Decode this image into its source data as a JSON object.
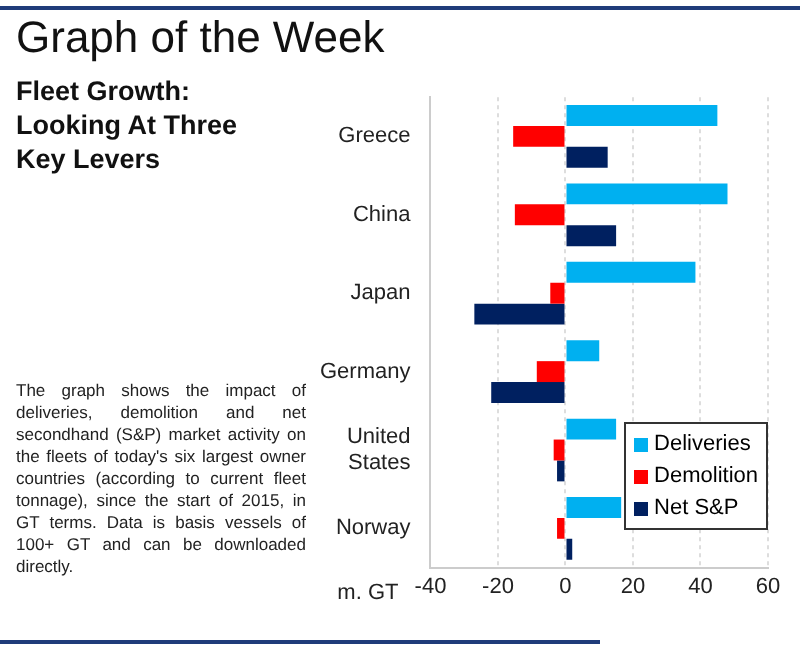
{
  "chart_data": {
    "type": "bar",
    "orientation": "horizontal",
    "title": "Graph of the Week",
    "subtitle": "Fleet Growth: Looking At Three Key Levers",
    "annotations": [
      "The graph shows the impact of deliveries, demolition and net secondhand (S&P) market activity on the fleets of today's six largest owner countries (according to current fleet tonnage), since the start of 2015, in GT terms. Data is basis vessels of 100+ GT and can be downloaded directly."
    ],
    "xlabel": "m. GT",
    "categories": [
      "Greece",
      "China",
      "Japan",
      "Germany",
      "United States",
      "Norway"
    ],
    "series": [
      {
        "name": "Deliveries",
        "color": "#00b0f0",
        "values": [
          45,
          48,
          38.5,
          10,
          15,
          16.5
        ]
      },
      {
        "name": "Demolition",
        "color": "#ff0000",
        "values": [
          -15.5,
          -15,
          -4.5,
          -8.5,
          -3.5,
          -2.5
        ]
      },
      {
        "name": "Net S&P",
        "color": "#002060",
        "values": [
          12.5,
          15,
          -27,
          -22,
          -2.5,
          2
        ]
      }
    ],
    "xlim": [
      -40,
      60
    ],
    "xticks": [
      -40,
      -20,
      0,
      20,
      40,
      60
    ],
    "grid": "x",
    "legend": "bottom right"
  }
}
